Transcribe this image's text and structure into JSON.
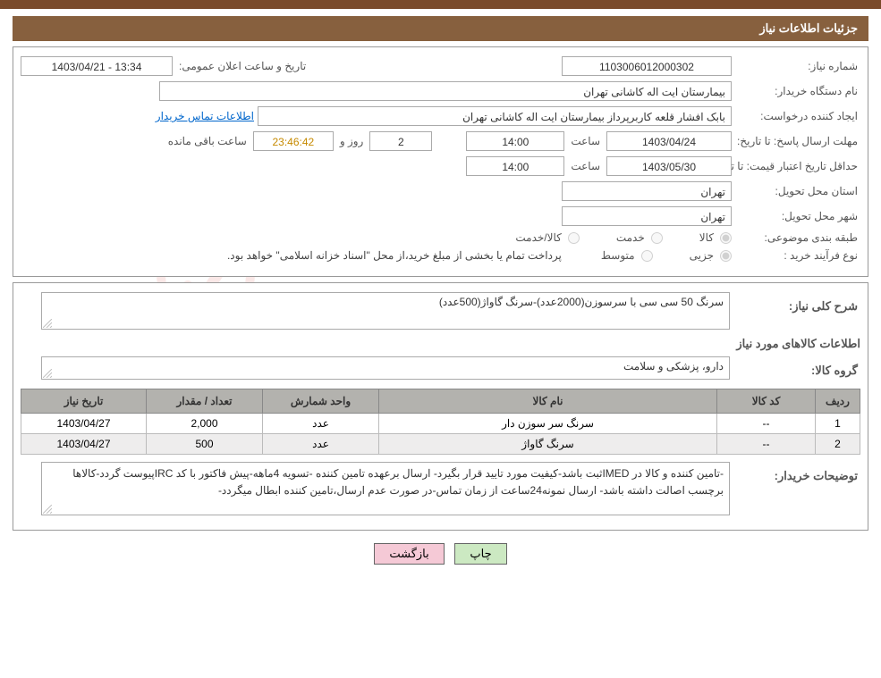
{
  "page_title": "جزئیات اطلاعات نیاز",
  "watermark_text": "AriaTender.net",
  "form": {
    "need_number_label": "شماره نیاز:",
    "need_number_value": "1103006012000302",
    "announce_datetime_label": "تاریخ و ساعت اعلان عمومی:",
    "announce_datetime_value": "13:34 - 1403/04/21",
    "buyer_org_label": "نام دستگاه خریدار:",
    "buyer_org_value": "بیمارستان ایت اله کاشانی تهران",
    "requester_label": "ایجاد کننده درخواست:",
    "requester_value": "بابک افشار قلعه کاربرپرداز بیمارستان ایت اله کاشانی تهران",
    "contact_link": "اطلاعات تماس خریدار",
    "reply_deadline_label": "مهلت ارسال پاسخ:",
    "to_date_label": "تا تاریخ:",
    "reply_date_value": "1403/04/24",
    "time_label": "ساعت",
    "reply_time_value": "14:00",
    "day_and_label": "روز و",
    "days_remain_value": "2",
    "countdown_value": "23:46:42",
    "remaining_label": "ساعت باقی مانده",
    "price_validity_label": "حداقل تاریخ اعتبار قیمت:",
    "price_validity_date": "1403/05/30",
    "price_validity_time": "14:00",
    "delivery_province_label": "استان محل تحویل:",
    "delivery_province_value": "تهران",
    "delivery_city_label": "شهر محل تحویل:",
    "delivery_city_value": "تهران",
    "category_label": "طبقه بندی موضوعی:",
    "cat_goods": "کالا",
    "cat_service": "خدمت",
    "cat_goods_service": "کالا/خدمت",
    "purchase_type_label": "نوع فرآیند خرید :",
    "pt_partial": "جزیی",
    "pt_medium": "متوسط",
    "payment_note": "پرداخت تمام یا بخشی از مبلغ خرید،از محل \"اسناد خزانه اسلامی\" خواهد بود.",
    "summary_label": "شرح کلی نیاز:",
    "summary_value": "سرنگ 50 سی سی با سرسوزن(2000عدد)-سرنگ گاواژ(500عدد)",
    "items_title": "اطلاعات کالاهای مورد نیاز",
    "group_label": "گروه کالا:",
    "group_value": "دارو، پزشکی و سلامت",
    "buyer_notes_label": "توضیحات خریدار:",
    "buyer_notes_value": "-تامین کننده و کالا در IMEDثبت باشد-کیفیت مورد تایید قرار بگیرد- ارسال برعهده تامین کننده -تسویه 4ماهه-پیش فاکتور با کد IRCپیوست گردد-کالاها برچسب اصالت داشته باشد- ارسال نمونه24ساعت از زمان تماس-در صورت عدم ارسال،تامین کننده ابطال میگردد-"
  },
  "table": {
    "columns": [
      "ردیف",
      "کد کالا",
      "نام کالا",
      "واحد شمارش",
      "تعداد / مقدار",
      "تاریخ نیاز"
    ],
    "rows": [
      [
        "1",
        "--",
        "سرنگ سر سوزن دار",
        "عدد",
        "2,000",
        "1403/04/27"
      ],
      [
        "2",
        "--",
        "سرنگ گاواژ",
        "عدد",
        "500",
        "1403/04/27"
      ]
    ],
    "col_widths": [
      "50px",
      "110px",
      "auto",
      "130px",
      "130px",
      "140px"
    ]
  },
  "buttons": {
    "print": "چاپ",
    "back": "بازگشت"
  },
  "colors": {
    "header_brown": "#87603e",
    "topbar_brown": "#7a4a2a",
    "th_bg": "#b3b2ae",
    "btn_green": "#cce9c2",
    "btn_pink": "#f5c9d6",
    "watermark_red": "#d52b1e"
  }
}
